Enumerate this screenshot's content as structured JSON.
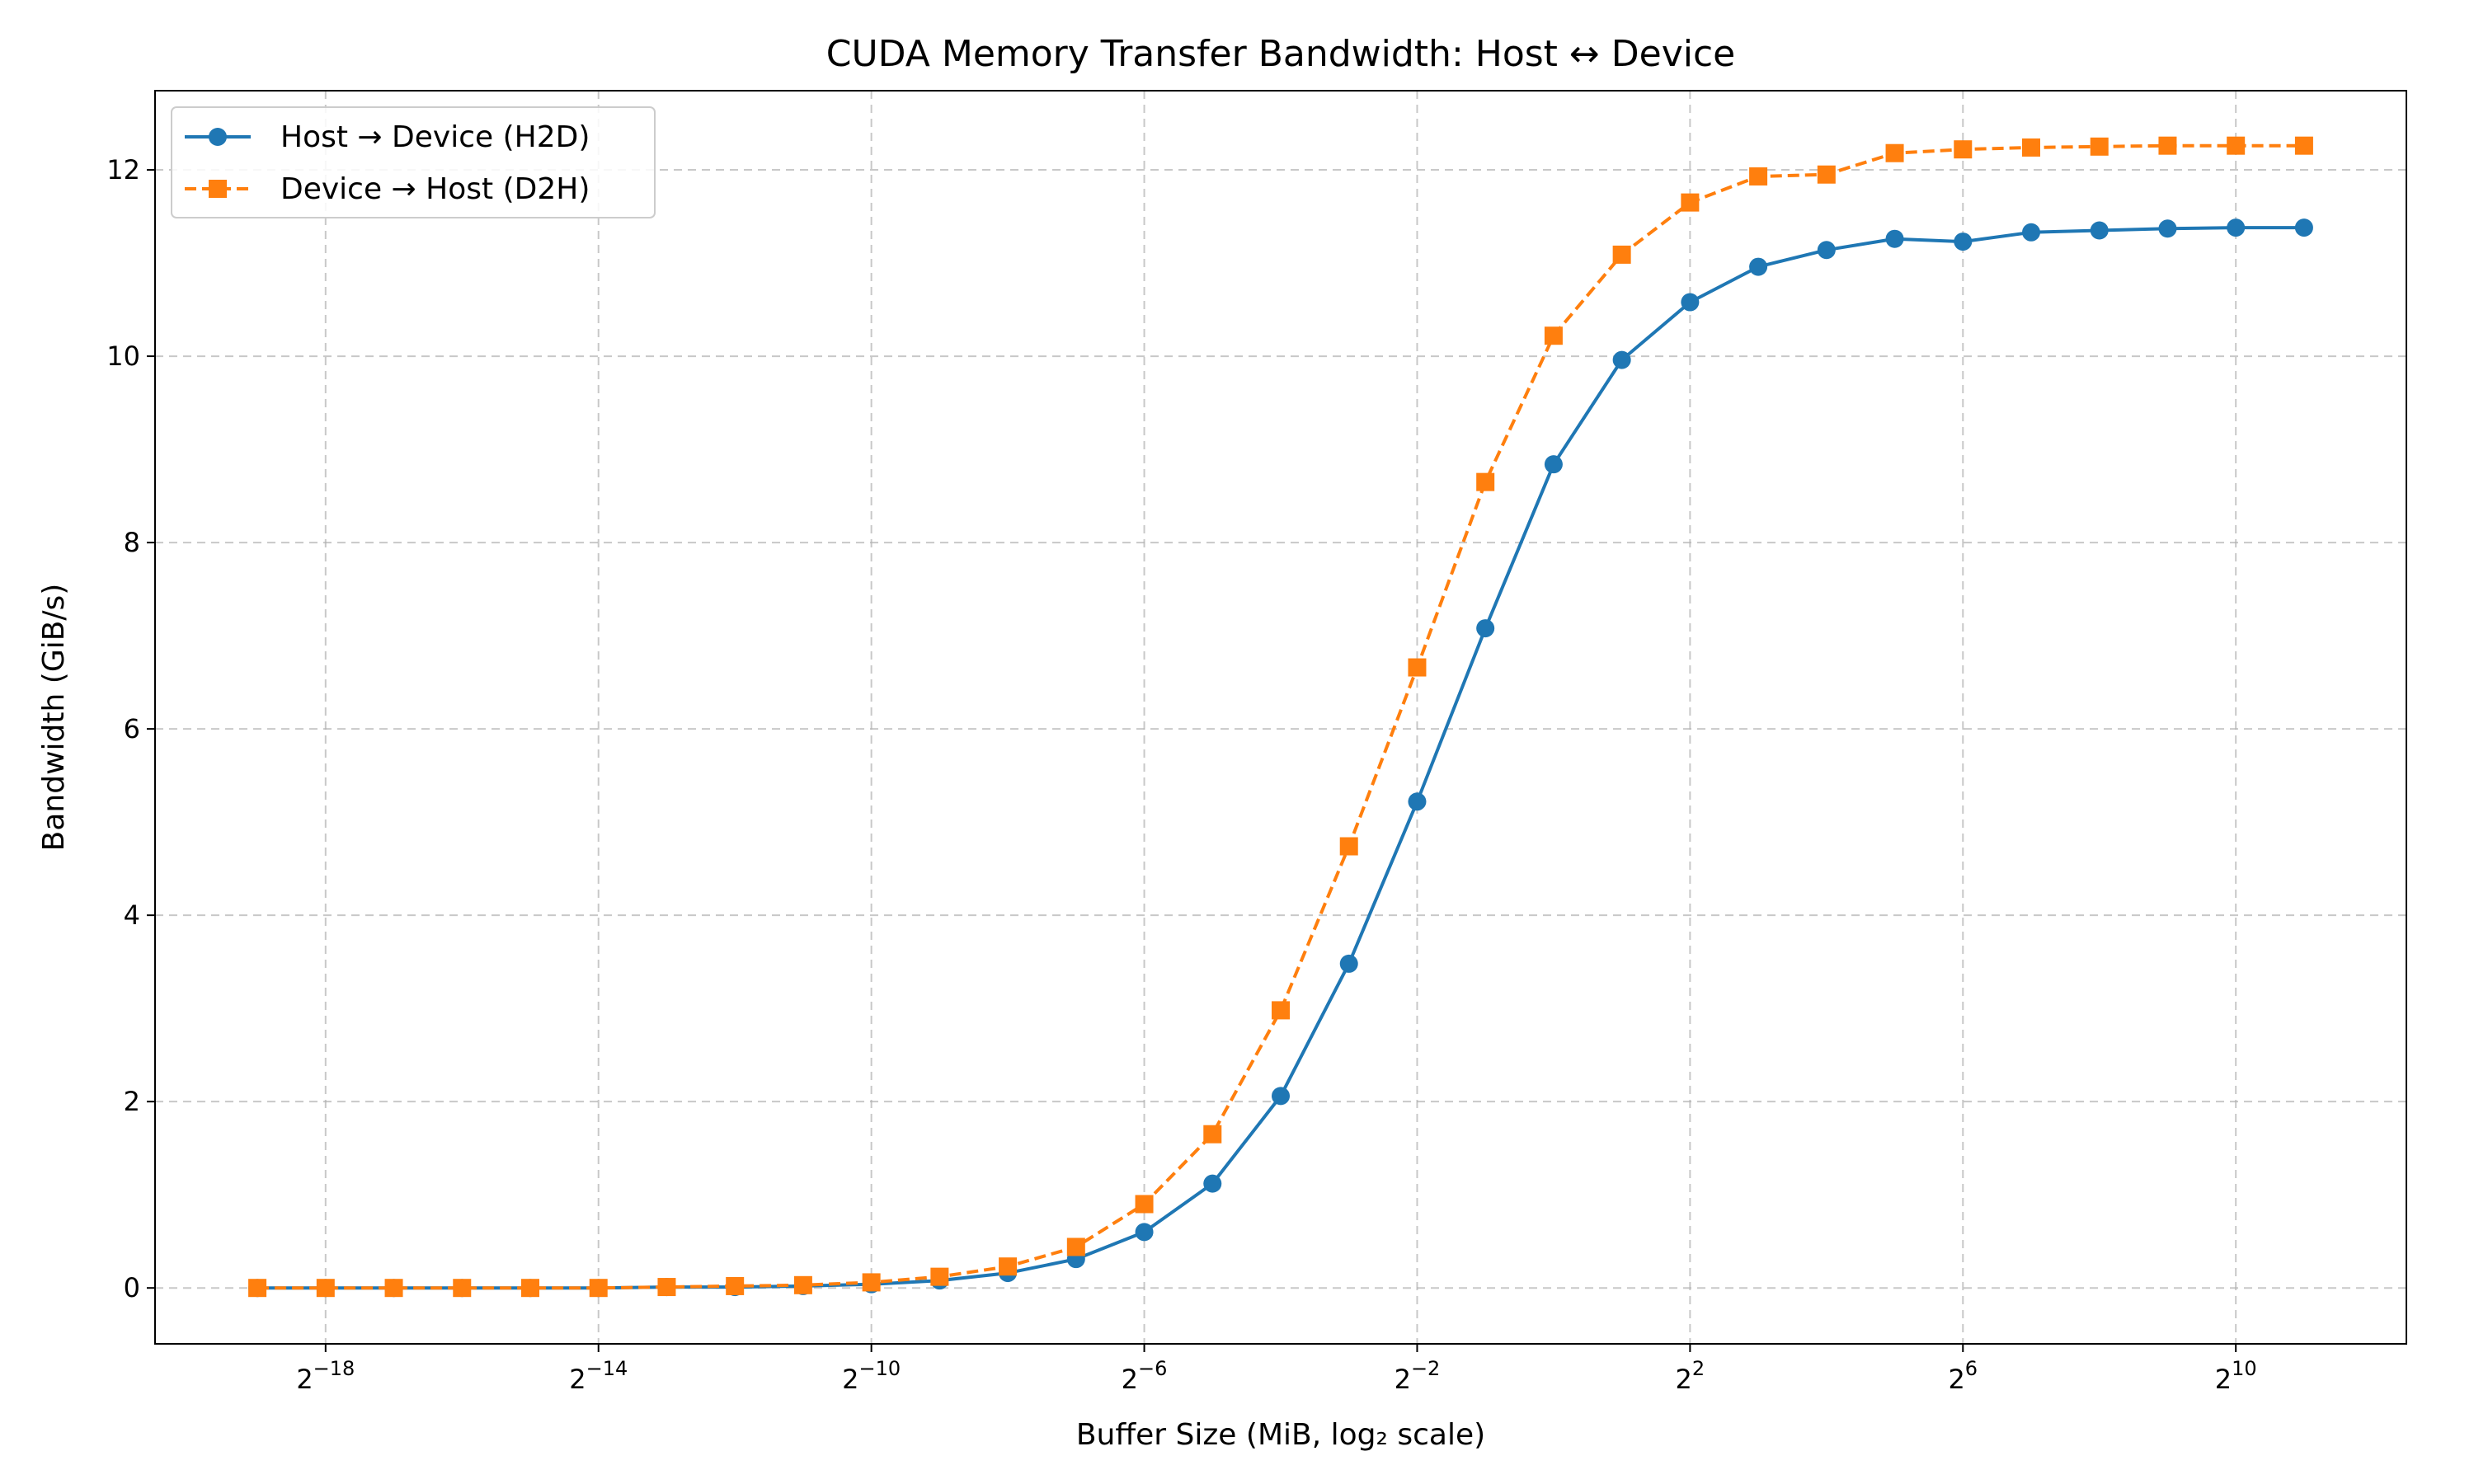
{
  "chart_data": {
    "type": "line",
    "title": "CUDA Memory Transfer Bandwidth: Host ↔ Device",
    "xlabel": "Buffer Size (MiB, log₂ scale)",
    "ylabel": "Bandwidth (GiB/s)",
    "x_scale": "log2",
    "x_ticks": [
      "2^-18",
      "2^-14",
      "2^-10",
      "2^-6",
      "2^-2",
      "2^2",
      "2^6",
      "2^10"
    ],
    "y_ticks": [
      0,
      2,
      4,
      6,
      8,
      10,
      12
    ],
    "ylim": [
      -0.6,
      12.85
    ],
    "grid": true,
    "legend_position": "upper-left",
    "x": [
      1.9073e-06,
      3.8147e-06,
      7.6294e-06,
      1.52588e-05,
      3.05176e-05,
      6.10352e-05,
      0.0001220703,
      0.0002441406,
      0.0004882813,
      0.0009765625,
      0.001953125,
      0.00390625,
      0.0078125,
      0.015625,
      0.03125,
      0.0625,
      0.125,
      0.25,
      0.5,
      1,
      2,
      4,
      8,
      16,
      32,
      64,
      128,
      256,
      512,
      1024,
      2048
    ],
    "series": [
      {
        "name": "Host → Device (H2D)",
        "color": "#1f77b4",
        "marker": "circle",
        "linestyle": "solid",
        "values": [
          0.0,
          0.0,
          0.0,
          0.0,
          0.0,
          0.0,
          0.01,
          0.01,
          0.02,
          0.04,
          0.08,
          0.16,
          0.31,
          0.6,
          1.12,
          2.06,
          3.48,
          5.22,
          7.08,
          8.84,
          9.96,
          10.58,
          10.96,
          11.14,
          11.26,
          11.23,
          11.33,
          11.35,
          11.37,
          11.38,
          11.38
        ]
      },
      {
        "name": "Device → Host (D2H)",
        "color": "#ff7f0e",
        "marker": "square",
        "linestyle": "dashed",
        "values": [
          0.0,
          0.0,
          0.0,
          0.0,
          0.0,
          0.0,
          0.01,
          0.02,
          0.03,
          0.06,
          0.12,
          0.23,
          0.44,
          0.9,
          1.65,
          2.98,
          4.74,
          6.66,
          8.65,
          10.22,
          11.09,
          11.65,
          11.93,
          11.95,
          12.18,
          12.22,
          12.24,
          12.25,
          12.26,
          12.26,
          12.26
        ]
      }
    ]
  }
}
